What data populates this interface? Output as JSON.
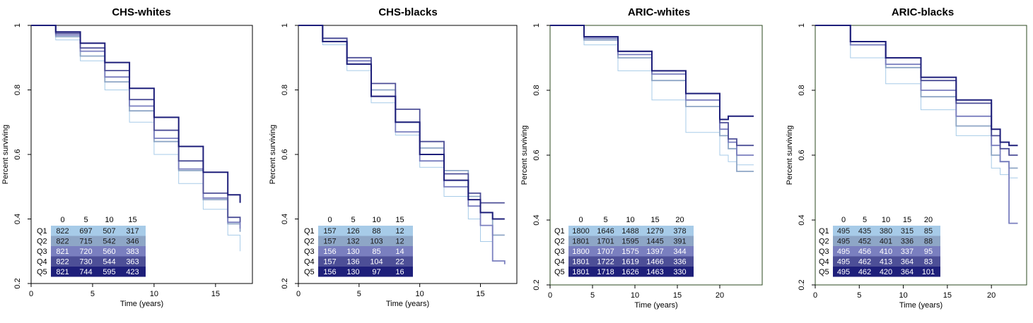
{
  "colors": {
    "Q1": "#a7cbe8",
    "Q2": "#8ea6c6",
    "Q3": "#7a7fbf",
    "Q4": "#4d4f97",
    "Q5": "#1e1f7a"
  },
  "chart_data": [
    {
      "type": "line",
      "title": "CHS-whites",
      "xlabel": "Time (years)",
      "ylabel": "Percent surviving",
      "xlim": [
        0,
        18
      ],
      "ylim": [
        0.2,
        1.0
      ],
      "xticks": [
        0,
        5,
        10,
        15
      ],
      "yticks": [
        0.2,
        0.4,
        0.6,
        0.8,
        1.0
      ],
      "series": [
        {
          "name": "Q1",
          "x": [
            0,
            2,
            4,
            6,
            8,
            10,
            12,
            14,
            16,
            17
          ],
          "y": [
            1.0,
            0.955,
            0.89,
            0.8,
            0.7,
            0.6,
            0.51,
            0.43,
            0.35,
            0.3
          ]
        },
        {
          "name": "Q2",
          "x": [
            0,
            2,
            4,
            6,
            8,
            10,
            12,
            14,
            16,
            17
          ],
          "y": [
            1.0,
            0.965,
            0.905,
            0.825,
            0.735,
            0.64,
            0.55,
            0.46,
            0.385,
            0.36
          ]
        },
        {
          "name": "Q3",
          "x": [
            0,
            2,
            4,
            6,
            8,
            10,
            12,
            14,
            16,
            17
          ],
          "y": [
            1.0,
            0.97,
            0.92,
            0.84,
            0.75,
            0.65,
            0.555,
            0.465,
            0.39,
            0.37
          ]
        },
        {
          "name": "Q4",
          "x": [
            0,
            2,
            4,
            6,
            8,
            10,
            12,
            14,
            16,
            17
          ],
          "y": [
            1.0,
            0.975,
            0.93,
            0.86,
            0.77,
            0.675,
            0.58,
            0.48,
            0.405,
            0.39
          ]
        },
        {
          "name": "Q5",
          "x": [
            0,
            2,
            4,
            6,
            8,
            10,
            12,
            14,
            16,
            17
          ],
          "y": [
            1.0,
            0.98,
            0.945,
            0.885,
            0.805,
            0.715,
            0.625,
            0.545,
            0.475,
            0.45
          ]
        }
      ],
      "risk_table": {
        "times": [
          "0",
          "5",
          "10",
          "15"
        ],
        "rows": [
          {
            "label": "Q1",
            "values": [
              "822",
              "697",
              "507",
              "317"
            ]
          },
          {
            "label": "Q2",
            "values": [
              "822",
              "715",
              "542",
              "346"
            ]
          },
          {
            "label": "Q3",
            "values": [
              "821",
              "720",
              "560",
              "383"
            ]
          },
          {
            "label": "Q4",
            "values": [
              "822",
              "730",
              "544",
              "363"
            ]
          },
          {
            "label": "Q5",
            "values": [
              "821",
              "744",
              "595",
              "423"
            ]
          }
        ]
      }
    },
    {
      "type": "line",
      "title": "CHS-blacks",
      "xlabel": "Time (years)",
      "ylabel": "Percent surviving",
      "xlim": [
        0,
        18
      ],
      "ylim": [
        0.2,
        1.0
      ],
      "xticks": [
        0,
        5,
        10,
        15
      ],
      "yticks": [
        0.2,
        0.4,
        0.6,
        0.8,
        1.0
      ],
      "series": [
        {
          "name": "Q1",
          "x": [
            0,
            2,
            4,
            6,
            8,
            10,
            12,
            14,
            15,
            16,
            17
          ],
          "y": [
            1.0,
            0.94,
            0.86,
            0.76,
            0.66,
            0.56,
            0.47,
            0.4,
            0.33,
            0.27,
            0.26
          ]
        },
        {
          "name": "Q2",
          "x": [
            0,
            2,
            4,
            6,
            8,
            10,
            12,
            14,
            15,
            16,
            17
          ],
          "y": [
            1.0,
            0.95,
            0.88,
            0.8,
            0.7,
            0.62,
            0.55,
            0.47,
            0.42,
            0.35,
            0.35
          ]
        },
        {
          "name": "Q3",
          "x": [
            0,
            2,
            4,
            6,
            8,
            10,
            12,
            14,
            15,
            16,
            17
          ],
          "y": [
            1.0,
            0.96,
            0.89,
            0.78,
            0.67,
            0.58,
            0.5,
            0.44,
            0.38,
            0.27,
            0.26
          ]
        },
        {
          "name": "Q4",
          "x": [
            0,
            2,
            4,
            6,
            8,
            10,
            12,
            14,
            15,
            16,
            17
          ],
          "y": [
            1.0,
            0.96,
            0.9,
            0.82,
            0.74,
            0.64,
            0.54,
            0.48,
            0.45,
            0.45,
            0.45
          ]
        },
        {
          "name": "Q5",
          "x": [
            0,
            2,
            4,
            6,
            8,
            10,
            12,
            14,
            15,
            16,
            17
          ],
          "y": [
            1.0,
            0.95,
            0.88,
            0.78,
            0.7,
            0.6,
            0.52,
            0.46,
            0.42,
            0.4,
            0.4
          ]
        }
      ],
      "risk_table": {
        "times": [
          "0",
          "5",
          "10",
          "15"
        ],
        "rows": [
          {
            "label": "Q1",
            "values": [
              "157",
              "126",
              "88",
              "12"
            ]
          },
          {
            "label": "Q2",
            "values": [
              "157",
              "132",
              "103",
              "12"
            ]
          },
          {
            "label": "Q3",
            "values": [
              "156",
              "130",
              "85",
              "14"
            ]
          },
          {
            "label": "Q4",
            "values": [
              "157",
              "136",
              "104",
              "22"
            ]
          },
          {
            "label": "Q5",
            "values": [
              "156",
              "130",
              "97",
              "16"
            ]
          }
        ]
      }
    },
    {
      "type": "line",
      "title": "ARIC-whites",
      "xlabel": "Time (years)",
      "ylabel": "Percent surviving",
      "xlim": [
        0,
        25
      ],
      "ylim": [
        0.2,
        1.0
      ],
      "xticks": [
        0,
        5,
        10,
        15,
        20
      ],
      "yticks": [
        0.2,
        0.4,
        0.6,
        0.8,
        1.0
      ],
      "series": [
        {
          "name": "Q1",
          "x": [
            0,
            4,
            8,
            12,
            16,
            20,
            21,
            22,
            24
          ],
          "y": [
            1.0,
            0.94,
            0.86,
            0.77,
            0.67,
            0.6,
            0.58,
            0.57,
            0.57
          ]
        },
        {
          "name": "Q2",
          "x": [
            0,
            4,
            8,
            12,
            16,
            20,
            21,
            22,
            24
          ],
          "y": [
            1.0,
            0.955,
            0.9,
            0.83,
            0.75,
            0.66,
            0.62,
            0.55,
            0.55
          ]
        },
        {
          "name": "Q3",
          "x": [
            0,
            4,
            8,
            12,
            16,
            20,
            21,
            22,
            24
          ],
          "y": [
            1.0,
            0.96,
            0.91,
            0.85,
            0.77,
            0.68,
            0.64,
            0.6,
            0.6
          ]
        },
        {
          "name": "Q4",
          "x": [
            0,
            4,
            8,
            12,
            16,
            20,
            21,
            22,
            24
          ],
          "y": [
            1.0,
            0.965,
            0.92,
            0.86,
            0.79,
            0.7,
            0.65,
            0.63,
            0.63
          ]
        },
        {
          "name": "Q5",
          "x": [
            0,
            4,
            8,
            12,
            16,
            20,
            21,
            22,
            24
          ],
          "y": [
            1.0,
            0.965,
            0.92,
            0.86,
            0.79,
            0.71,
            0.72,
            0.72,
            0.72
          ]
        }
      ],
      "risk_table": {
        "times": [
          "0",
          "5",
          "10",
          "15",
          "20"
        ],
        "rows": [
          {
            "label": "Q1",
            "values": [
              "1800",
              "1646",
              "1488",
              "1279",
              "378"
            ]
          },
          {
            "label": "Q2",
            "values": [
              "1801",
              "1701",
              "1595",
              "1445",
              "391"
            ]
          },
          {
            "label": "Q3",
            "values": [
              "1800",
              "1707",
              "1575",
              "1397",
              "344"
            ]
          },
          {
            "label": "Q4",
            "values": [
              "1801",
              "1722",
              "1619",
              "1466",
              "336"
            ]
          },
          {
            "label": "Q5",
            "values": [
              "1801",
              "1718",
              "1626",
              "1463",
              "330"
            ]
          }
        ]
      }
    },
    {
      "type": "line",
      "title": "ARIC-blacks",
      "xlabel": "Time (years)",
      "ylabel": "Percent surviving",
      "xlim": [
        0,
        24
      ],
      "ylim": [
        0.2,
        1.0
      ],
      "xticks": [
        0,
        5,
        10,
        15,
        20
      ],
      "yticks": [
        0.2,
        0.4,
        0.6,
        0.8,
        1.0
      ],
      "series": [
        {
          "name": "Q1",
          "x": [
            0,
            4,
            8,
            12,
            16,
            20,
            21,
            22,
            23
          ],
          "y": [
            1.0,
            0.9,
            0.82,
            0.74,
            0.66,
            0.56,
            0.54,
            0.53,
            0.53
          ]
        },
        {
          "name": "Q2",
          "x": [
            0,
            4,
            8,
            12,
            16,
            20,
            21,
            22,
            23
          ],
          "y": [
            1.0,
            0.94,
            0.87,
            0.78,
            0.69,
            0.6,
            0.58,
            0.56,
            0.56
          ]
        },
        {
          "name": "Q3",
          "x": [
            0,
            4,
            8,
            12,
            16,
            20,
            21,
            22,
            23
          ],
          "y": [
            1.0,
            0.94,
            0.88,
            0.8,
            0.72,
            0.63,
            0.58,
            0.39,
            0.39
          ]
        },
        {
          "name": "Q4",
          "x": [
            0,
            4,
            8,
            12,
            16,
            20,
            21,
            22,
            23
          ],
          "y": [
            1.0,
            0.95,
            0.9,
            0.83,
            0.76,
            0.66,
            0.62,
            0.6,
            0.6
          ]
        },
        {
          "name": "Q5",
          "x": [
            0,
            4,
            8,
            12,
            16,
            20,
            21,
            22,
            23
          ],
          "y": [
            1.0,
            0.95,
            0.9,
            0.84,
            0.77,
            0.68,
            0.64,
            0.63,
            0.63
          ]
        }
      ],
      "risk_table": {
        "times": [
          "0",
          "5",
          "10",
          "15",
          "20"
        ],
        "rows": [
          {
            "label": "Q1",
            "values": [
              "495",
              "435",
              "380",
              "315",
              "85"
            ]
          },
          {
            "label": "Q2",
            "values": [
              "495",
              "452",
              "401",
              "336",
              "88"
            ]
          },
          {
            "label": "Q3",
            "values": [
              "495",
              "456",
              "410",
              "337",
              "95"
            ]
          },
          {
            "label": "Q4",
            "values": [
              "495",
              "462",
              "413",
              "364",
              "83"
            ]
          },
          {
            "label": "Q5",
            "values": [
              "495",
              "462",
              "420",
              "364",
              "101"
            ]
          }
        ]
      }
    }
  ]
}
